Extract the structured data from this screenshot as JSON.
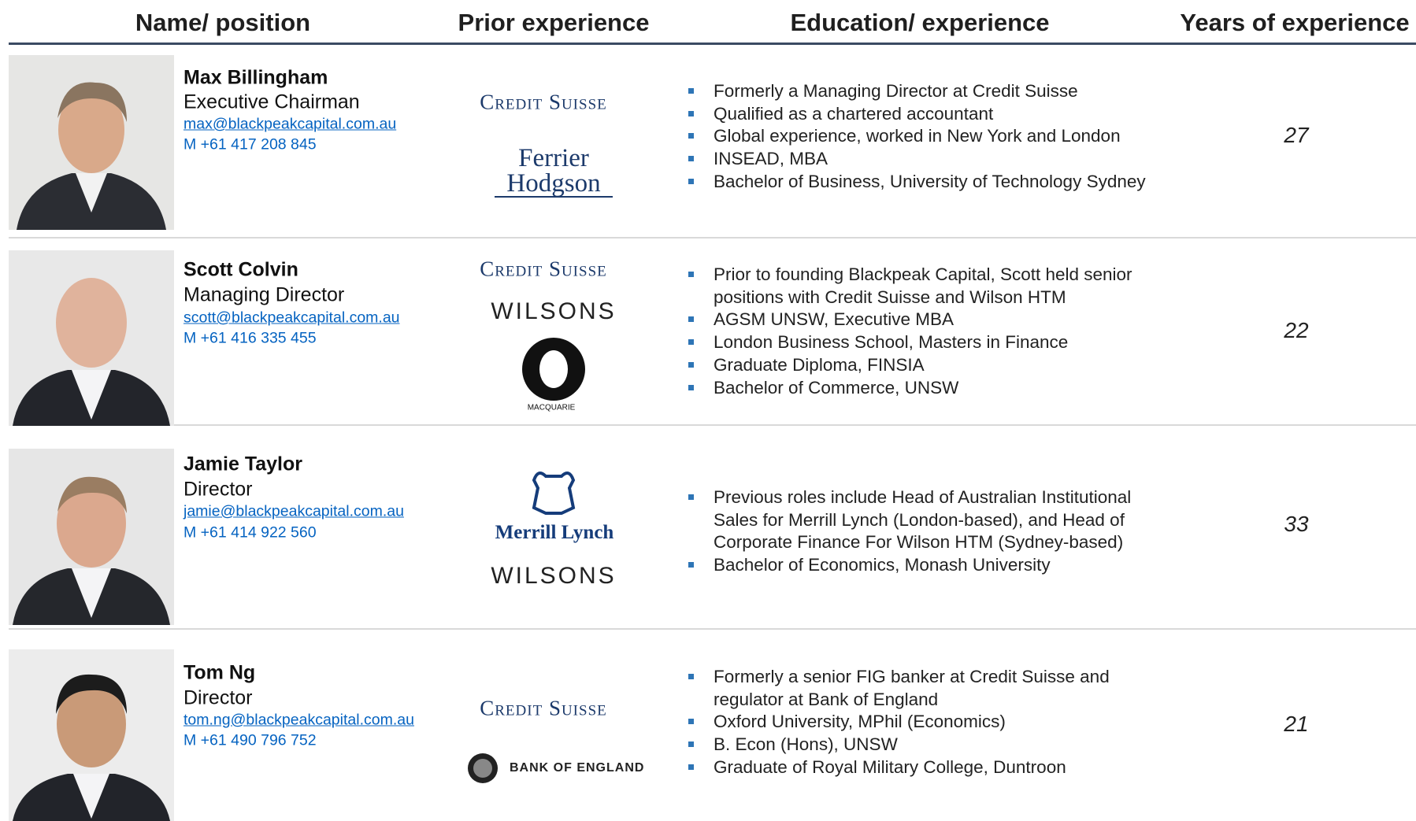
{
  "header": {
    "name_position": "Name/ position",
    "prior_experience": "Prior experience",
    "education_experience": "Education/ experience",
    "years_of_experience": "Years of experience"
  },
  "rows": [
    {
      "name": "Max Billingham",
      "position": "Executive Chairman",
      "email": "max@blackpeakcapital.com.au",
      "phone": "M +61 417 208 845",
      "logos": [
        "Credit Suisse",
        "Ferrier Hodgson"
      ],
      "bullets": [
        "Formerly a Managing Director at Credit Suisse",
        "Qualified as a chartered accountant",
        "Global experience, worked in New York and London",
        "INSEAD, MBA",
        "Bachelor of Business, University of Technology Sydney"
      ],
      "years": "27"
    },
    {
      "name": "Scott Colvin",
      "position": "Managing Director",
      "email": "scott@blackpeakcapital.com.au",
      "phone": "M +61 416 335 455",
      "logos": [
        "Credit Suisse",
        "WILSONS",
        "MACQUARIE"
      ],
      "bullets": [
        "Prior to founding Blackpeak Capital, Scott held senior positions with Credit Suisse and Wilson HTM",
        "AGSM UNSW, Executive MBA",
        "London Business School, Masters in Finance",
        "Graduate Diploma, FINSIA",
        "Bachelor of Commerce, UNSW"
      ],
      "years": "22"
    },
    {
      "name": "Jamie Taylor",
      "position": "Director",
      "email": "jamie@blackpeakcapital.com.au",
      "phone": "M +61 414 922 560",
      "logos": [
        "Merrill Lynch",
        "WILSONS"
      ],
      "bullets": [
        "Previous roles include Head of Australian Institutional Sales for Merrill Lynch (London-based), and Head of Corporate Finance For Wilson HTM (Sydney-based)",
        "Bachelor of Economics, Monash University"
      ],
      "years": "33"
    },
    {
      "name": "Tom Ng",
      "position": "Director",
      "email": "tom.ng@blackpeakcapital.com.au",
      "phone": "M +61 490 796 752",
      "logos": [
        "Credit Suisse",
        "BANK OF ENGLAND"
      ],
      "bullets": [
        "Formerly a senior FIG banker at Credit Suisse and regulator at Bank of England",
        "Oxford University, MPhil (Economics)",
        "B. Econ (Hons), UNSW",
        "Graduate of Royal Military College, Duntroon"
      ],
      "years": "21"
    }
  ]
}
